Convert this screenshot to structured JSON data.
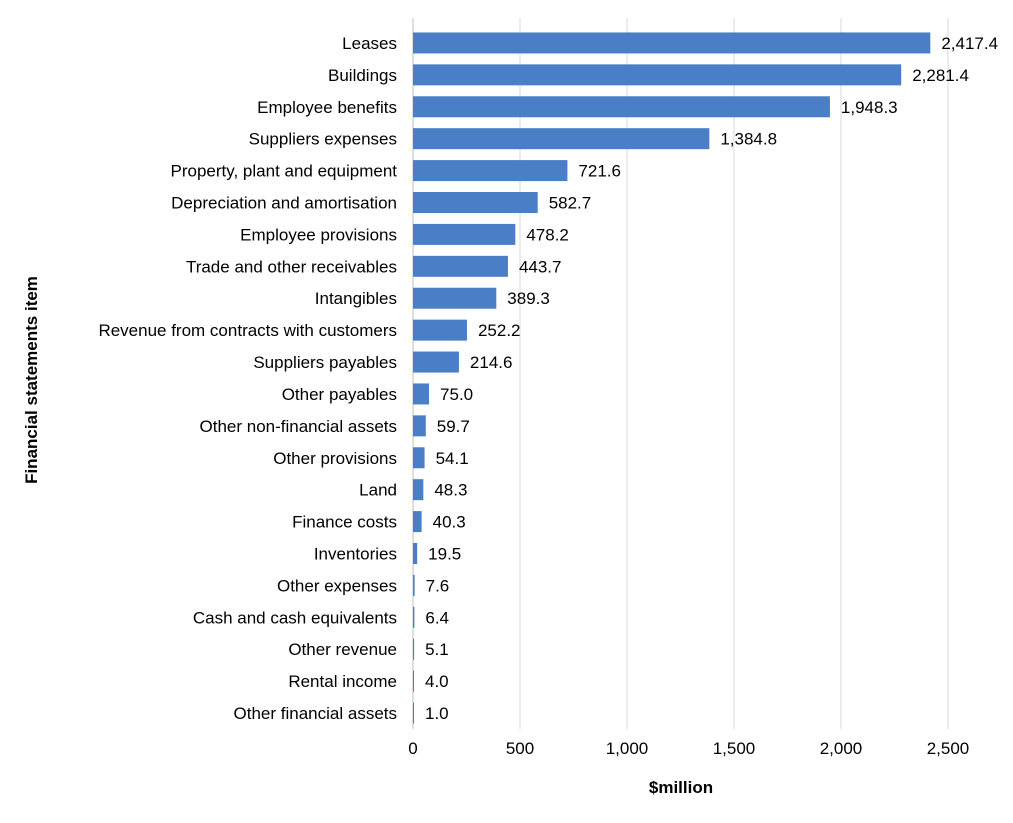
{
  "chart_data": {
    "type": "bar",
    "orientation": "horizontal",
    "xlabel": "$million",
    "ylabel": "Financial statements item",
    "xlim": [
      0,
      2500
    ],
    "xticks": [
      0,
      500,
      1000,
      1500,
      2000,
      2500
    ],
    "xtick_labels": [
      "0",
      "500",
      "1,000",
      "1,500",
      "2,000",
      "2,500"
    ],
    "vertical_gridlines": true,
    "legend": "none",
    "bar_color": "#4a7ec6",
    "categories": [
      "Leases",
      "Buildings",
      "Employee benefits",
      "Suppliers expenses",
      "Property, plant and equipment",
      "Depreciation and amortisation",
      "Employee provisions",
      "Trade and other receivables",
      "Intangibles",
      "Revenue from contracts with customers",
      "Suppliers payables",
      "Other payables",
      "Other non-financial assets",
      "Other provisions",
      "Land",
      "Finance costs",
      "Inventories",
      "Other expenses",
      "Cash and cash equivalents",
      "Other revenue",
      "Rental income",
      "Other financial assets"
    ],
    "values": [
      2417.4,
      2281.4,
      1948.3,
      1384.8,
      721.6,
      582.7,
      478.2,
      443.7,
      389.3,
      252.2,
      214.6,
      75.0,
      59.7,
      54.1,
      48.3,
      40.3,
      19.5,
      7.6,
      6.4,
      5.1,
      4.0,
      1.0
    ],
    "value_labels": [
      "2,417.4",
      "2,281.4",
      "1,948.3",
      "1,384.8",
      "721.6",
      "582.7",
      "478.2",
      "443.7",
      "389.3",
      "252.2",
      "214.6",
      "75.0",
      "59.7",
      "54.1",
      "48.3",
      "40.3",
      "19.5",
      "7.6",
      "6.4",
      "5.1",
      "4.0",
      "1.0"
    ]
  }
}
